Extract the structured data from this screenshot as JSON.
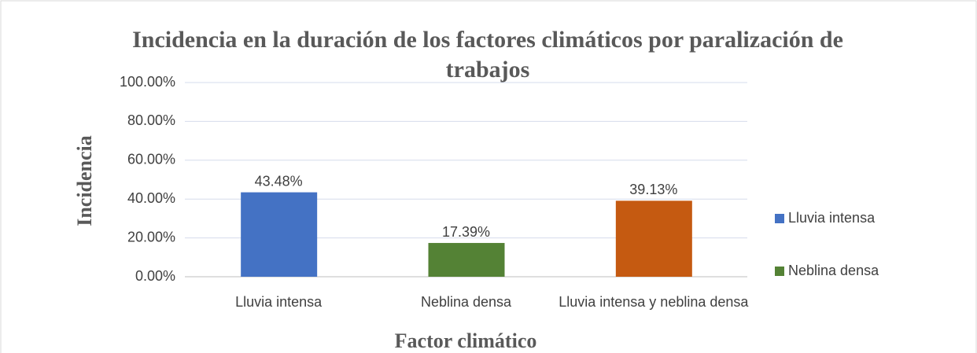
{
  "chart_data": {
    "type": "bar",
    "title": "Incidencia en la duración de los factores climáticos por paralización de trabajos",
    "x_label": "Factor climático",
    "y_label": "Incidencia",
    "categories": [
      "Lluvia intensa",
      "Neblina densa",
      "Lluvia intensa y neblina densa"
    ],
    "values": [
      43.48,
      17.39,
      39.13
    ],
    "value_labels": [
      "43.48%",
      "17.39%",
      "39.13%"
    ],
    "colors": [
      "#4472c4",
      "#548235",
      "#c55a11"
    ],
    "ylim": [
      0,
      100
    ],
    "yticks": [
      {
        "value": 0,
        "label": "0.00%"
      },
      {
        "value": 20,
        "label": "20.00%"
      },
      {
        "value": 40,
        "label": "40.00%"
      },
      {
        "value": 60,
        "label": "60.00%"
      },
      {
        "value": 80,
        "label": "80.00%"
      },
      {
        "value": 100,
        "label": "100.00%"
      }
    ],
    "grid": true,
    "legend": [
      {
        "name": "Lluvia intensa",
        "color": "#4472c4"
      },
      {
        "name": "Neblina densa",
        "color": "#548235"
      }
    ]
  }
}
